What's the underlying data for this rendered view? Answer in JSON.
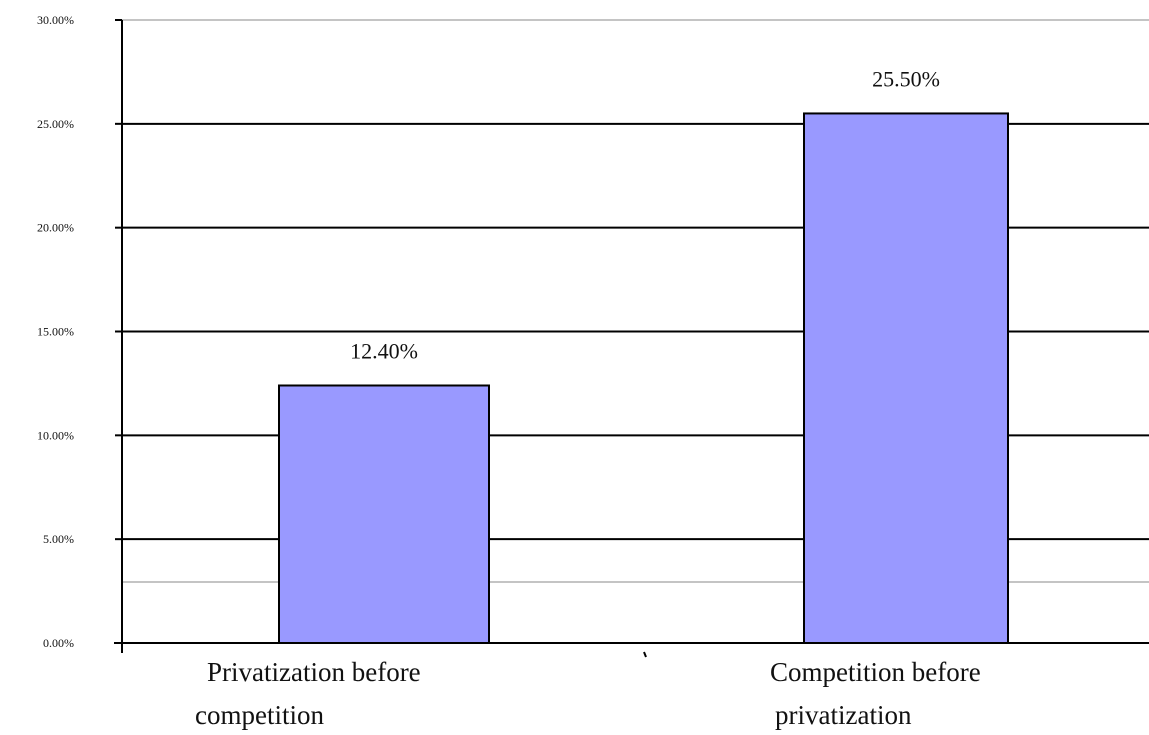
{
  "chart_data": {
    "type": "bar",
    "categories": [
      [
        "Privatization before",
        "competition"
      ],
      [
        "Competition before",
        "privatization"
      ]
    ],
    "values": [
      12.4,
      25.5
    ],
    "data_labels": [
      "12.40%",
      "25.50%"
    ],
    "ylim": [
      0,
      30
    ],
    "yticks": [
      0,
      5,
      10,
      15,
      20,
      25,
      30
    ],
    "ytick_labels": [
      "0.00%",
      "5.00%",
      "10.00%",
      "15.00%",
      "20.00%",
      "25.00%",
      "30.00%"
    ],
    "grid": true,
    "bar_color": "#9999ff",
    "title": "",
    "xlabel": "",
    "ylabel": ""
  }
}
